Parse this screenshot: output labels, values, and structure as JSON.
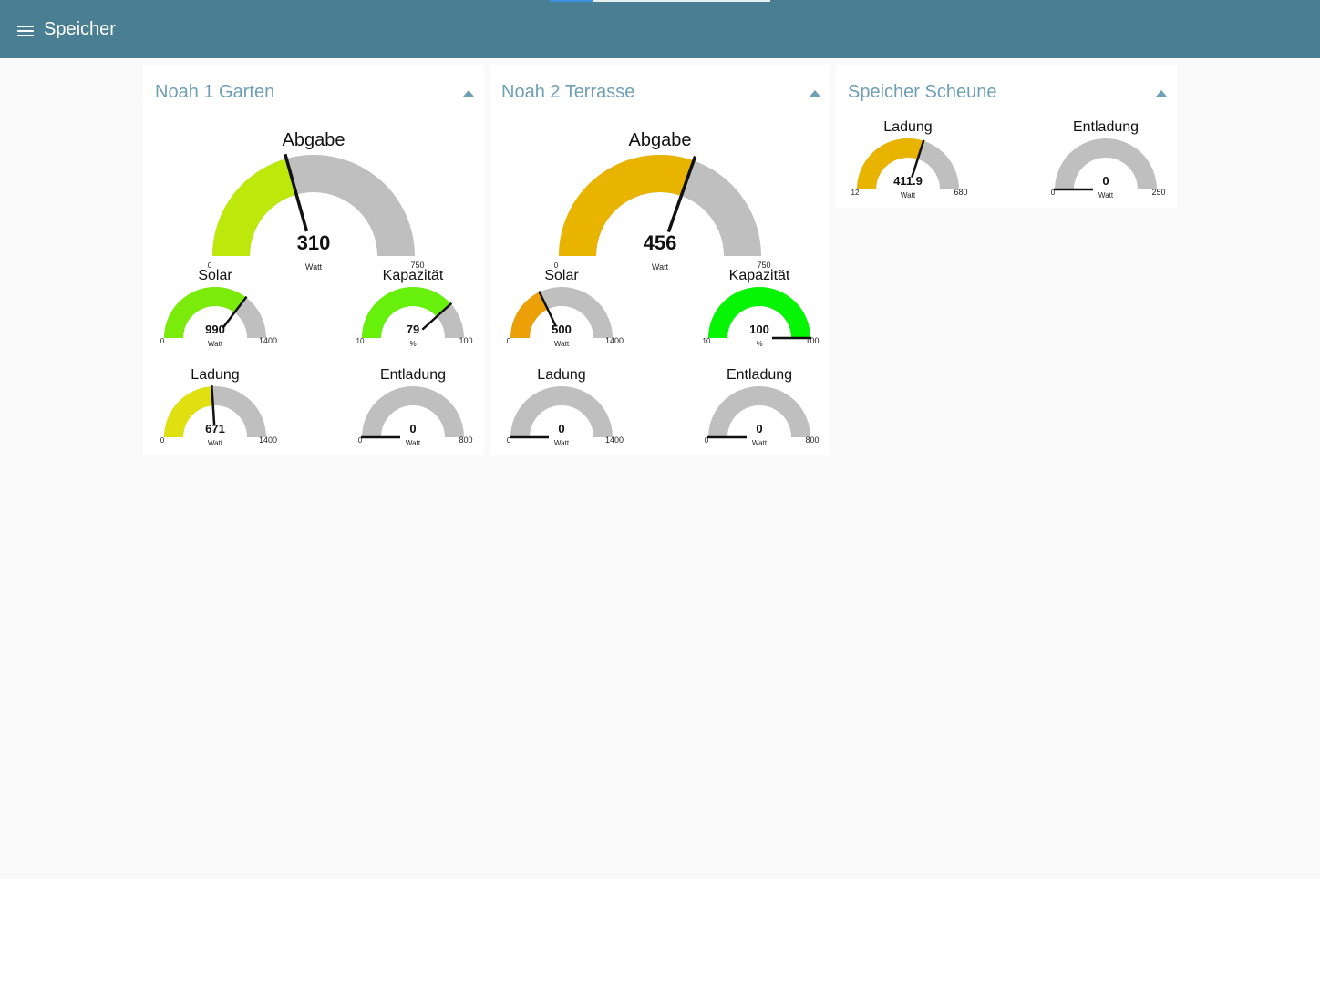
{
  "header": {
    "title": "Speicher",
    "menu_icon": "menu-icon",
    "background": "#4a7e93"
  },
  "groups": [
    {
      "title": "Noah 1 Garten",
      "gauges": [
        {
          "label": "Abgabe",
          "value": 310,
          "display": "310",
          "unit": "Watt",
          "min": 0,
          "max": 750,
          "color": "#bde80b"
        },
        {
          "label": "Solar",
          "value": 990,
          "display": "990",
          "unit": "Watt",
          "min": 0,
          "max": 1400,
          "color": "#7aeb0a"
        },
        {
          "label": "Kapazität",
          "value": 79,
          "display": "79",
          "unit": "%",
          "min": 10,
          "max": 100,
          "color": "#66f00c"
        },
        {
          "label": "Ladung",
          "value": 671,
          "display": "671",
          "unit": "Watt",
          "min": 0,
          "max": 1400,
          "color": "#e0e011"
        },
        {
          "label": "Entladung",
          "value": 0,
          "display": "0",
          "unit": "Watt",
          "min": 0,
          "max": 800,
          "color": "#bfbfbf"
        }
      ]
    },
    {
      "title": "Noah 2 Terrasse",
      "gauges": [
        {
          "label": "Abgabe",
          "value": 456,
          "display": "456",
          "unit": "Watt",
          "min": 0,
          "max": 750,
          "color": "#e8b400"
        },
        {
          "label": "Solar",
          "value": 500,
          "display": "500",
          "unit": "Watt",
          "min": 0,
          "max": 1400,
          "color": "#eba007"
        },
        {
          "label": "Kapazität",
          "value": 100,
          "display": "100",
          "unit": "%",
          "min": 10,
          "max": 100,
          "color": "#05f505"
        },
        {
          "label": "Ladung",
          "value": 0,
          "display": "0",
          "unit": "Watt",
          "min": 0,
          "max": 1400,
          "color": "#bfbfbf"
        },
        {
          "label": "Entladung",
          "value": 0,
          "display": "0",
          "unit": "Watt",
          "min": 0,
          "max": 800,
          "color": "#bfbfbf"
        }
      ]
    },
    {
      "title": "Speicher Scheune",
      "gauges": [
        {
          "label": "Ladung",
          "value": 411.9,
          "display": "411.9",
          "unit": "Watt",
          "min": 12,
          "max": 680,
          "color": "#e8b400"
        },
        {
          "label": "Entladung",
          "value": 0,
          "display": "0",
          "unit": "Watt",
          "min": 0,
          "max": 250,
          "color": "#bfbfbf"
        }
      ]
    }
  ],
  "colors": {
    "track": "#bfbfbf",
    "group_title": "#6e9fb5",
    "background": "#fafafa"
  }
}
